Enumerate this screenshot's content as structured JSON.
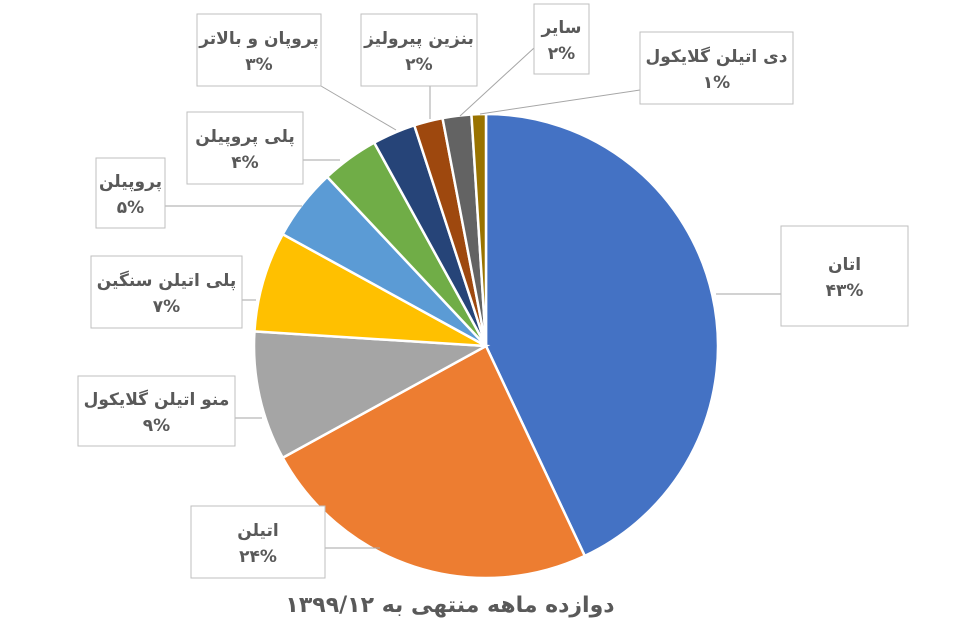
{
  "chart_data": {
    "type": "pie",
    "title": "دوازده ماهه منتهی به ۱۳۹۹/۱۲",
    "slices": [
      {
        "label": "اتان",
        "value": 43,
        "value_label": "۴۳%",
        "color": "#4472C4"
      },
      {
        "label": "اتیلن",
        "value": 24,
        "value_label": "۲۴%",
        "color": "#ED7D31"
      },
      {
        "label": "منو اتیلن گلایکول",
        "value": 9,
        "value_label": "۹%",
        "color": "#A5A5A5"
      },
      {
        "label": "پلی اتیلن سنگین",
        "value": 7,
        "value_label": "۷%",
        "color": "#FFC000"
      },
      {
        "label": "پروپیلن",
        "value": 5,
        "value_label": "۵%",
        "color": "#5B9BD5"
      },
      {
        "label": "پلی پروپیلن",
        "value": 4,
        "value_label": "۴%",
        "color": "#70AD47"
      },
      {
        "label": "پروپان و بالاتر",
        "value": 3,
        "value_label": "۳%",
        "color": "#264478"
      },
      {
        "label": "بنزین پیرولیز",
        "value": 2,
        "value_label": "۲%",
        "color": "#9E480E"
      },
      {
        "label": "سایر",
        "value": 2,
        "value_label": "۲%",
        "color": "#636363"
      },
      {
        "label": "دی اتیلن گلایکول",
        "value": 1,
        "value_label": "۱%",
        "color": "#997300"
      }
    ]
  }
}
